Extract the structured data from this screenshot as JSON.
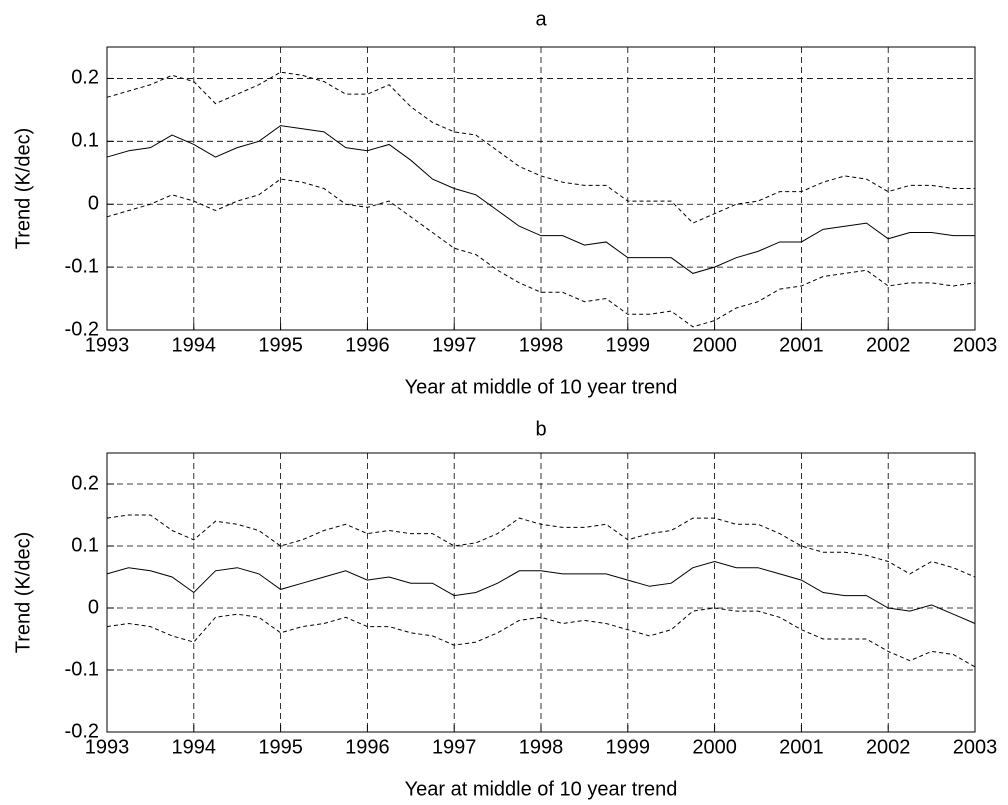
{
  "chart_data": [
    {
      "type": "line",
      "title": "a",
      "x_label": "Year at middle of 10 year trend",
      "y_label": "Trend (K/dec)",
      "xlim": [
        1993,
        2003
      ],
      "ylim": [
        -0.2,
        0.25
      ],
      "xticks": [
        1993,
        1994,
        1995,
        1996,
        1997,
        1998,
        1999,
        2000,
        2001,
        2002,
        2003
      ],
      "yticks": [
        -0.2,
        -0.1,
        0,
        0.1,
        0.2
      ],
      "grid": true,
      "x": [
        1993,
        1993.25,
        1993.5,
        1993.75,
        1994,
        1994.25,
        1994.5,
        1994.75,
        1995,
        1995.25,
        1995.5,
        1995.75,
        1996,
        1996.25,
        1996.5,
        1996.75,
        1997,
        1997.25,
        1997.5,
        1997.75,
        1998,
        1998.25,
        1998.5,
        1998.75,
        1999,
        1999.25,
        1999.5,
        1999.75,
        2000,
        2000.25,
        2000.5,
        2000.75,
        2001,
        2001.25,
        2001.5,
        2001.75,
        2002,
        2002.25,
        2002.5,
        2002.75,
        2003
      ],
      "series": [
        {
          "color": "#000000",
          "style": "solid",
          "values": [
            0.075,
            0.085,
            0.09,
            0.11,
            0.095,
            0.075,
            0.09,
            0.1,
            0.125,
            0.12,
            0.115,
            0.09,
            0.085,
            0.095,
            0.07,
            0.04,
            0.025,
            0.015,
            -0.01,
            -0.035,
            -0.05,
            -0.05,
            -0.065,
            -0.06,
            -0.085,
            -0.085,
            -0.085,
            -0.11,
            -0.1,
            -0.085,
            -0.075,
            -0.06,
            -0.06,
            -0.04,
            -0.035,
            -0.03,
            -0.055,
            -0.045,
            -0.045,
            -0.05,
            -0.05
          ]
        },
        {
          "color": "#000000",
          "style": "dashed",
          "values": [
            0.17,
            0.18,
            0.19,
            0.205,
            0.195,
            0.16,
            0.175,
            0.19,
            0.21,
            0.205,
            0.195,
            0.175,
            0.175,
            0.19,
            0.155,
            0.13,
            0.115,
            0.11,
            0.085,
            0.06,
            0.045,
            0.035,
            0.03,
            0.03,
            0.005,
            0.005,
            0.005,
            -0.03,
            -0.015,
            0.0,
            0.005,
            0.02,
            0.02,
            0.035,
            0.045,
            0.04,
            0.02,
            0.03,
            0.03,
            0.025,
            0.025
          ]
        },
        {
          "color": "#000000",
          "style": "dashed",
          "values": [
            -0.02,
            -0.01,
            0.0,
            0.015,
            0.005,
            -0.01,
            0.005,
            0.015,
            0.04,
            0.035,
            0.025,
            0.0,
            -0.005,
            0.005,
            -0.02,
            -0.045,
            -0.07,
            -0.08,
            -0.105,
            -0.125,
            -0.14,
            -0.14,
            -0.155,
            -0.15,
            -0.175,
            -0.175,
            -0.17,
            -0.195,
            -0.185,
            -0.165,
            -0.155,
            -0.135,
            -0.13,
            -0.115,
            -0.11,
            -0.105,
            -0.13,
            -0.125,
            -0.125,
            -0.13,
            -0.125
          ]
        }
      ]
    },
    {
      "type": "line",
      "title": "b",
      "x_label": "Year at middle of 10 year trend",
      "y_label": "Trend (K/dec)",
      "xlim": [
        1993,
        2003
      ],
      "ylim": [
        -0.2,
        0.25
      ],
      "xticks": [
        1993,
        1994,
        1995,
        1996,
        1997,
        1998,
        1999,
        2000,
        2001,
        2002,
        2003
      ],
      "yticks": [
        -0.2,
        -0.1,
        0,
        0.1,
        0.2
      ],
      "grid": true,
      "x": [
        1993,
        1993.25,
        1993.5,
        1993.75,
        1994,
        1994.25,
        1994.5,
        1994.75,
        1995,
        1995.25,
        1995.5,
        1995.75,
        1996,
        1996.25,
        1996.5,
        1996.75,
        1997,
        1997.25,
        1997.5,
        1997.75,
        1998,
        1998.25,
        1998.5,
        1998.75,
        1999,
        1999.25,
        1999.5,
        1999.75,
        2000,
        2000.25,
        2000.5,
        2000.75,
        2001,
        2001.25,
        2001.5,
        2001.75,
        2002,
        2002.25,
        2002.5,
        2002.75,
        2003
      ],
      "series": [
        {
          "color": "#000000",
          "style": "solid",
          "values": [
            0.055,
            0.065,
            0.06,
            0.05,
            0.025,
            0.06,
            0.065,
            0.055,
            0.03,
            0.04,
            0.05,
            0.06,
            0.045,
            0.05,
            0.04,
            0.04,
            0.02,
            0.025,
            0.04,
            0.06,
            0.06,
            0.055,
            0.055,
            0.055,
            0.045,
            0.035,
            0.04,
            0.065,
            0.075,
            0.065,
            0.065,
            0.055,
            0.045,
            0.025,
            0.02,
            0.02,
            0.0,
            -0.005,
            0.005,
            -0.01,
            -0.025
          ]
        },
        {
          "color": "#000000",
          "style": "dashed",
          "values": [
            0.145,
            0.15,
            0.15,
            0.125,
            0.11,
            0.14,
            0.135,
            0.125,
            0.1,
            0.11,
            0.125,
            0.135,
            0.12,
            0.125,
            0.12,
            0.12,
            0.1,
            0.105,
            0.12,
            0.145,
            0.135,
            0.13,
            0.13,
            0.135,
            0.11,
            0.12,
            0.125,
            0.145,
            0.145,
            0.135,
            0.135,
            0.12,
            0.1,
            0.09,
            0.09,
            0.085,
            0.075,
            0.055,
            0.075,
            0.065,
            0.05
          ]
        },
        {
          "color": "#000000",
          "style": "dashed",
          "values": [
            -0.03,
            -0.025,
            -0.03,
            -0.045,
            -0.055,
            -0.015,
            -0.01,
            -0.015,
            -0.04,
            -0.03,
            -0.025,
            -0.015,
            -0.03,
            -0.03,
            -0.04,
            -0.045,
            -0.06,
            -0.055,
            -0.04,
            -0.02,
            -0.015,
            -0.025,
            -0.02,
            -0.025,
            -0.035,
            -0.045,
            -0.035,
            -0.005,
            0.0,
            -0.005,
            -0.005,
            -0.015,
            -0.035,
            -0.05,
            -0.05,
            -0.05,
            -0.07,
            -0.085,
            -0.07,
            -0.075,
            -0.095
          ]
        }
      ]
    }
  ]
}
